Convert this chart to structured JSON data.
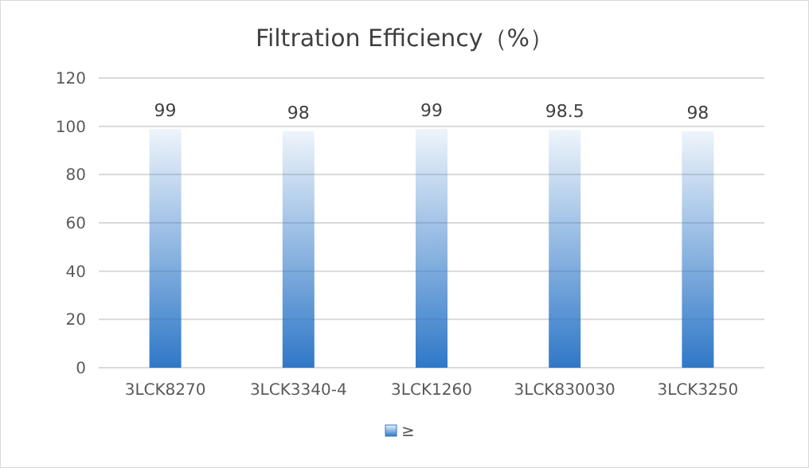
{
  "chart_data": {
    "type": "bar",
    "title": "Filtration Efficiency（%）",
    "categories": [
      "3LCK8270",
      "3LCK3340-4",
      "3LCK1260",
      "3LCK830030",
      "3LCK3250"
    ],
    "series": [
      {
        "name": "≥",
        "color": "#2f78c8",
        "values": [
          99,
          98,
          99,
          98.5,
          98
        ]
      }
    ],
    "ylim": [
      0,
      120
    ],
    "yticks": [
      0,
      20,
      40,
      60,
      80,
      100,
      120
    ],
    "grid": "y",
    "data_labels": true,
    "legend": "bottom"
  }
}
